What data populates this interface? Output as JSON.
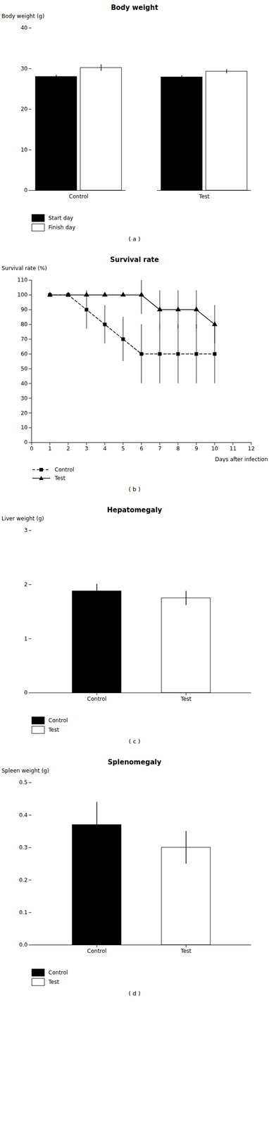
{
  "chart_data": [
    {
      "type": "bar",
      "title": "Body weight",
      "ylabel": "Body weight (g)",
      "categories": [
        "Control",
        "Test"
      ],
      "series": [
        {
          "name": "Start day",
          "color": "#000000",
          "values": [
            28.0,
            27.9
          ],
          "errors": [
            0.4,
            0.4
          ]
        },
        {
          "name": "Finish day",
          "color": "#ffffff",
          "values": [
            30.2,
            29.3
          ],
          "errors": [
            0.8,
            0.5
          ]
        }
      ],
      "ylim": [
        0,
        40
      ],
      "yticks": [
        0,
        10,
        20,
        30,
        40
      ],
      "grid": false,
      "legend": "bottom",
      "caption": "( a )"
    },
    {
      "type": "line",
      "title": "Survival rate",
      "xlabel": "Days after infection",
      "ylabel": "Survival rate (%)",
      "x": [
        1,
        2,
        3,
        4,
        5,
        6,
        7,
        8,
        9,
        10
      ],
      "series": [
        {
          "name": "Control",
          "color": "#000000",
          "line_style": "dashed",
          "marker": "square",
          "values": [
            100,
            100,
            90,
            80,
            70,
            60,
            60,
            60,
            60,
            60
          ],
          "errors": [
            0,
            0,
            13,
            13,
            15,
            20,
            20,
            20,
            20,
            20
          ]
        },
        {
          "name": "Test",
          "color": "#000000",
          "line_style": "solid",
          "marker": "triangle",
          "values": [
            100,
            100,
            100,
            100,
            100,
            100,
            90,
            90,
            90,
            80
          ],
          "errors": [
            0,
            0,
            0,
            0,
            0,
            13,
            13,
            13,
            13,
            13
          ]
        }
      ],
      "xlim": [
        0,
        12
      ],
      "xticks": [
        0,
        1,
        2,
        3,
        4,
        5,
        6,
        7,
        8,
        9,
        10,
        11,
        12
      ],
      "ylim": [
        0,
        110
      ],
      "yticks": [
        0,
        10,
        20,
        30,
        40,
        50,
        60,
        70,
        80,
        90,
        100,
        110
      ],
      "grid": false,
      "legend": "bottom",
      "caption": "( b )"
    },
    {
      "type": "bar",
      "title": "Hepatomegaly",
      "ylabel": "Liver weight (g)",
      "categories": [
        "Control",
        "Test"
      ],
      "values": [
        1.88,
        1.75
      ],
      "errors": [
        0.13,
        0.13
      ],
      "colors": [
        "#000000",
        "#ffffff"
      ],
      "ylim": [
        0,
        3
      ],
      "yticks": [
        0,
        1,
        2,
        3
      ],
      "grid": false,
      "legend": "bottom",
      "caption": "( c )"
    },
    {
      "type": "bar",
      "title": "Splenomegaly",
      "ylabel": "Spleen weight (g)",
      "categories": [
        "Control",
        "Test"
      ],
      "values": [
        0.37,
        0.3
      ],
      "errors": [
        0.07,
        0.05
      ],
      "colors": [
        "#000000",
        "#ffffff"
      ],
      "ylim": [
        0,
        0.5
      ],
      "yticks": [
        {
          "value": 0,
          "label": "0.0"
        },
        0.1,
        0.2,
        0.3,
        0.4,
        0.5
      ],
      "grid": false,
      "legend": "bottom",
      "caption": "( d )"
    }
  ]
}
